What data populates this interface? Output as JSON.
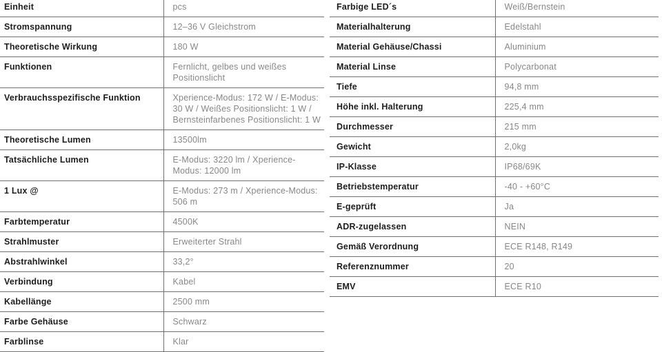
{
  "colors": {
    "background": "#ffffff",
    "label_text": "#1d1d1b",
    "value_text": "#878787",
    "divider": "#707070"
  },
  "left_table": {
    "rows": [
      {
        "label": "Einheit",
        "value": "pcs"
      },
      {
        "label": "Stromspannung",
        "value": "12–36 V Gleichstrom"
      },
      {
        "label": "Theoretische Wirkung",
        "value": "180 W"
      },
      {
        "label": "Funktionen",
        "value": "Fernlicht, gelbes und weißes Positionslicht"
      },
      {
        "label": "Verbrauchsspezifische Funktion",
        "value": "Xperience-Modus: 172 W / E-Modus: 30 W / Weißes Positionslicht: 1 W / Bernsteinfarbenes Positionslicht: 1 W"
      },
      {
        "label": "Theoretische Lumen",
        "value": "13500lm"
      },
      {
        "label": "Tatsächliche Lumen",
        "value": "E-Modus: 3220 lm / Xperience-Modus: 12000 lm"
      },
      {
        "label": "1 Lux @",
        "value": "E-Modus: 273 m / Xperience-Modus: 506 m"
      },
      {
        "label": "Farbtemperatur",
        "value": "4500K"
      },
      {
        "label": "Strahlmuster",
        "value": "Erweiterter Strahl"
      },
      {
        "label": "Abstrahlwinkel",
        "value": "33,2°"
      },
      {
        "label": "Verbindung",
        "value": "Kabel"
      },
      {
        "label": "Kabellänge",
        "value": "2500 mm"
      },
      {
        "label": "Farbe Gehäuse",
        "value": "Schwarz"
      },
      {
        "label": "Farblinse",
        "value": "Klar"
      }
    ]
  },
  "right_table": {
    "rows": [
      {
        "label": "Farbige LED´s",
        "value": "Weiß/Bernstein"
      },
      {
        "label": "Materialhalterung",
        "value": "Edelstahl"
      },
      {
        "label": "Material Gehäuse/Chassi",
        "value": "Aluminium"
      },
      {
        "label": "Material Linse",
        "value": "Polycarbonat"
      },
      {
        "label": "Tiefe",
        "value": "94,8 mm"
      },
      {
        "label": "Höhe inkl. Halterung",
        "value": "225,4 mm"
      },
      {
        "label": "Durchmesser",
        "value": "215 mm"
      },
      {
        "label": "Gewicht",
        "value": "2,0kg"
      },
      {
        "label": "IP-Klasse",
        "value": "IP68/69K"
      },
      {
        "label": "Betriebstemperatur",
        "value": "-40 - +60°C"
      },
      {
        "label": "E-geprüft",
        "value": "Ja"
      },
      {
        "label": "ADR-zugelassen",
        "value": "NEIN"
      },
      {
        "label": "Gemäß Verordnung",
        "value": "ECE R148, R149"
      },
      {
        "label": "Referenznummer",
        "value": "20"
      },
      {
        "label": "EMV",
        "value": "ECE R10"
      }
    ]
  }
}
